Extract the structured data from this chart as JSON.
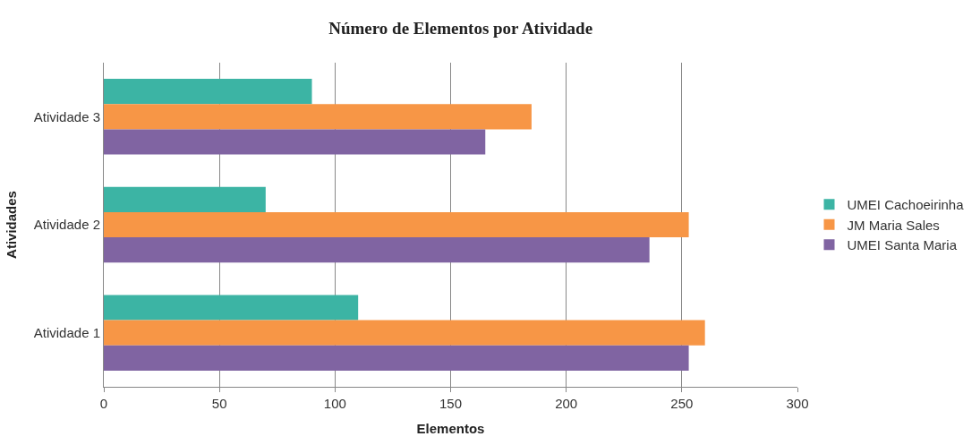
{
  "chart_data": {
    "type": "bar",
    "orientation": "horizontal",
    "title": "Número de Elementos por Atividade",
    "xlabel": "Elementos",
    "ylabel": "Atividades",
    "categories": [
      "Atividade 3",
      "Atividade 2",
      "Atividade 1"
    ],
    "series": [
      {
        "name": "UMEI Cachoeirinha",
        "color": "#3cb4a4",
        "values": [
          90,
          70,
          110
        ]
      },
      {
        "name": "JM Maria Sales",
        "color": "#f79646",
        "values": [
          185,
          253,
          260
        ]
      },
      {
        "name": "UMEI Santa Maria",
        "color": "#8064a2",
        "values": [
          165,
          236,
          253
        ]
      }
    ],
    "xlim": [
      0,
      300
    ],
    "xticks": [
      0,
      50,
      100,
      150,
      200,
      250,
      300
    ],
    "grid": "x",
    "legend": "right"
  }
}
